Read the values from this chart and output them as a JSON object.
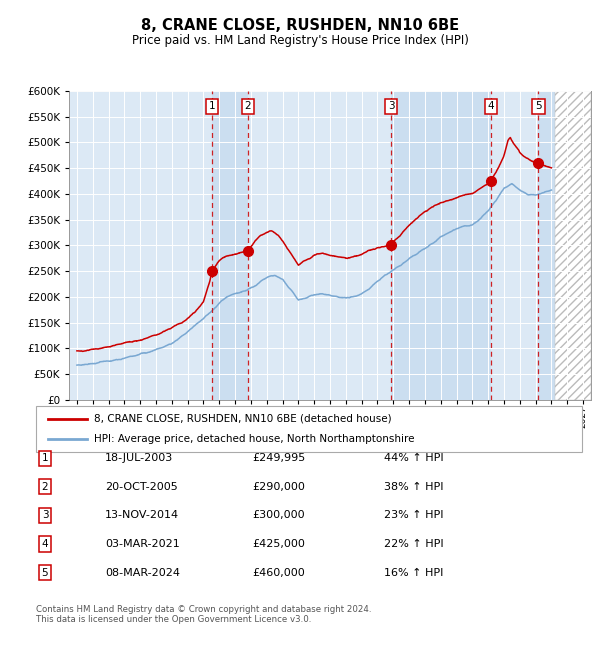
{
  "title": "8, CRANE CLOSE, RUSHDEN, NN10 6BE",
  "subtitle": "Price paid vs. HM Land Registry's House Price Index (HPI)",
  "ylim": [
    0,
    600000
  ],
  "yticks": [
    0,
    50000,
    100000,
    150000,
    200000,
    250000,
    300000,
    350000,
    400000,
    450000,
    500000,
    550000,
    600000
  ],
  "xlim_start": 1994.5,
  "xlim_end": 2027.5,
  "background_color": "#ffffff",
  "plot_bg_color": "#dce9f5",
  "grid_color": "#ffffff",
  "transactions": [
    {
      "num": 1,
      "date": "18-JUL-2003",
      "x": 2003.54,
      "price": 249995,
      "label": "1"
    },
    {
      "num": 2,
      "date": "20-OCT-2005",
      "x": 2005.8,
      "price": 290000,
      "label": "2"
    },
    {
      "num": 3,
      "date": "13-NOV-2014",
      "x": 2014.87,
      "price": 300000,
      "label": "3"
    },
    {
      "num": 4,
      "date": "03-MAR-2021",
      "x": 2021.17,
      "price": 425000,
      "label": "4"
    },
    {
      "num": 5,
      "date": "08-MAR-2024",
      "x": 2024.18,
      "price": 460000,
      "label": "5"
    }
  ],
  "legend_line1": "8, CRANE CLOSE, RUSHDEN, NN10 6BE (detached house)",
  "legend_line2": "HPI: Average price, detached house, North Northamptonshire",
  "table_rows": [
    [
      "1",
      "18-JUL-2003",
      "£249,995",
      "44% ↑ HPI"
    ],
    [
      "2",
      "20-OCT-2005",
      "£290,000",
      "38% ↑ HPI"
    ],
    [
      "3",
      "13-NOV-2014",
      "£300,000",
      "23% ↑ HPI"
    ],
    [
      "4",
      "03-MAR-2021",
      "£425,000",
      "22% ↑ HPI"
    ],
    [
      "5",
      "08-MAR-2024",
      "£460,000",
      "16% ↑ HPI"
    ]
  ],
  "footer": "Contains HM Land Registry data © Crown copyright and database right 2024.\nThis data is licensed under the Open Government Licence v3.0.",
  "red_color": "#cc0000",
  "blue_color": "#7aa8d2",
  "shade_color": "#c8ddf0"
}
